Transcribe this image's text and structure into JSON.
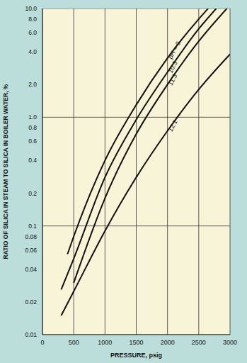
{
  "chart_data": {
    "type": "line",
    "title": "",
    "x_label": "PRESSURE, psig",
    "y_label": "RATIO OF SILICA IN STEAM TO SILICA IN BOILER WATER, %",
    "log": "y",
    "grid": true,
    "xlim": [
      0,
      3000
    ],
    "xticks": [
      0,
      500,
      1000,
      1500,
      2000,
      2500,
      3000
    ],
    "ylim": [
      0.01,
      10
    ],
    "yticks": [
      0.01,
      0.02,
      0.04,
      0.06,
      0.08,
      0.1,
      0.2,
      0.4,
      0.6,
      0.8,
      {
        "value": 1,
        "label": "1.0"
      },
      {
        "value": 2,
        "label": "2.0"
      },
      {
        "value": 4,
        "label": "4.0"
      },
      {
        "value": 6,
        "label": "6.0"
      },
      {
        "value": 8,
        "label": "8.0"
      },
      {
        "value": 10,
        "label": "10.0"
      }
    ],
    "series": [
      {
        "name": "pH = 9",
        "color": "#111111",
        "x": [
          400,
          500,
          1000,
          1500,
          2000,
          2500,
          2650
        ],
        "values": [
          0.055,
          0.08,
          0.4,
          1.3,
          3.5,
          8.0,
          10
        ]
      },
      {
        "name": "10.3",
        "color": "#111111",
        "x": [
          300,
          500,
          1000,
          1500,
          2000,
          2500,
          2780
        ],
        "values": [
          0.026,
          0.05,
          0.28,
          0.95,
          2.6,
          6.5,
          10
        ]
      },
      {
        "name": "11.3",
        "color": "#111111",
        "x": [
          500,
          1000,
          1500,
          2000,
          2500,
          2950
        ],
        "values": [
          0.03,
          0.18,
          0.7,
          2.0,
          5.0,
          10
        ]
      },
      {
        "name": "12.1",
        "color": "#111111",
        "x": [
          300,
          500,
          1000,
          1500,
          2000,
          2500,
          3000
        ],
        "values": [
          0.015,
          0.025,
          0.09,
          0.28,
          0.75,
          1.8,
          3.8
        ]
      }
    ]
  }
}
